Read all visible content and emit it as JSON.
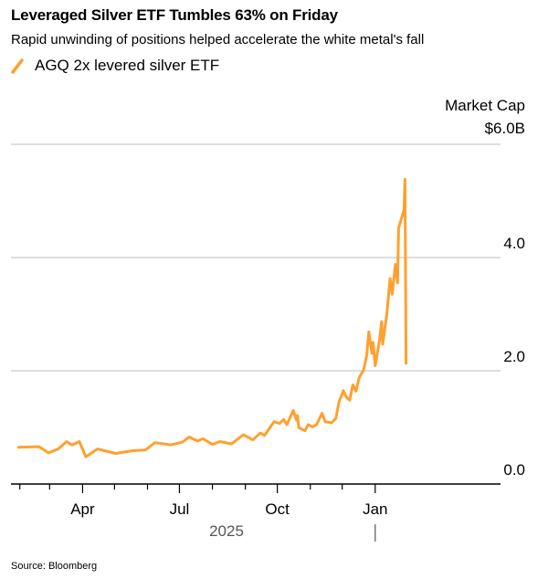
{
  "title": "Leveraged Silver ETF Tumbles 63% on Friday",
  "subtitle": "Rapid unwinding of positions helped accelerate the white metal's fall",
  "source": "Source: Bloomberg",
  "colors": {
    "series": "#FFA030",
    "grid": "#D4D4D4",
    "axis": "#000000",
    "year": "#555555"
  },
  "legend_icon": "slash-line-icon",
  "chart_data": {
    "type": "line",
    "title": "Leveraged Silver ETF Tumbles 63% on Friday",
    "ylabel": "Market Cap",
    "ylabel_unit_top": "$6.0B",
    "ylim": [
      0,
      6
    ],
    "y_ticks": [
      {
        "value": 0,
        "label": "0.0"
      },
      {
        "value": 2,
        "label": "2.0"
      },
      {
        "value": 4,
        "label": "4.0"
      }
    ],
    "y_axis_side": "right",
    "grid": true,
    "legend_placement": "top-left",
    "xlim": [
      "2025-01-24",
      "2026-02-23"
    ],
    "x_ticks": [
      {
        "date": "2025-02-01",
        "label": ""
      },
      {
        "date": "2025-03-01",
        "label": ""
      },
      {
        "date": "2025-04-01",
        "label": "Apr"
      },
      {
        "date": "2025-05-01",
        "label": ""
      },
      {
        "date": "2025-06-01",
        "label": ""
      },
      {
        "date": "2025-07-01",
        "label": "Jul"
      },
      {
        "date": "2025-08-01",
        "label": ""
      },
      {
        "date": "2025-09-01",
        "label": ""
      },
      {
        "date": "2025-10-01",
        "label": "Oct"
      },
      {
        "date": "2025-11-01",
        "label": ""
      },
      {
        "date": "2025-12-01",
        "label": ""
      },
      {
        "date": "2026-01-01",
        "label": "Jan"
      }
    ],
    "year_label": "2025",
    "series": [
      {
        "name": "AGQ 2x levered silver ETF",
        "x": [
          "2025-01-31",
          "2025-02-19",
          "2025-02-28",
          "2025-03-09",
          "2025-03-17",
          "2025-03-22",
          "2025-03-29",
          "2025-04-04",
          "2025-04-15",
          "2025-05-02",
          "2025-05-19",
          "2025-05-30",
          "2025-06-08",
          "2025-06-23",
          "2025-07-04",
          "2025-07-10",
          "2025-07-18",
          "2025-07-23",
          "2025-08-01",
          "2025-08-08",
          "2025-08-19",
          "2025-08-30",
          "2025-09-08",
          "2025-09-15",
          "2025-09-19",
          "2025-09-28",
          "2025-10-03",
          "2025-10-07",
          "2025-10-10",
          "2025-10-16",
          "2025-10-19",
          "2025-10-20",
          "2025-10-21",
          "2025-10-27",
          "2025-10-30",
          "2025-11-03",
          "2025-11-07",
          "2025-11-12",
          "2025-11-15",
          "2025-11-21",
          "2025-11-25",
          "2025-11-28",
          "2025-12-02",
          "2025-12-05",
          "2025-12-08",
          "2025-12-11",
          "2025-12-14",
          "2025-12-17",
          "2025-12-21",
          "2025-12-24",
          "2025-12-26",
          "2025-12-29",
          "2025-12-30",
          "2026-01-01",
          "2026-01-05",
          "2026-01-07",
          "2026-01-08",
          "2026-01-12",
          "2026-01-15",
          "2026-01-17",
          "2026-01-20",
          "2026-01-22",
          "2026-01-23",
          "2026-01-28",
          "2026-01-29",
          "2026-01-30"
        ],
        "y": [
          0.65,
          0.66,
          0.55,
          0.62,
          0.75,
          0.69,
          0.75,
          0.48,
          0.62,
          0.54,
          0.59,
          0.6,
          0.73,
          0.69,
          0.74,
          0.83,
          0.76,
          0.8,
          0.7,
          0.75,
          0.71,
          0.87,
          0.78,
          0.9,
          0.86,
          1.1,
          1.07,
          1.14,
          1.05,
          1.3,
          1.13,
          1.21,
          1.0,
          0.94,
          1.05,
          1.01,
          1.05,
          1.25,
          1.1,
          1.08,
          1.16,
          1.45,
          1.65,
          1.53,
          1.48,
          1.75,
          1.64,
          1.88,
          2.01,
          2.27,
          2.69,
          2.31,
          2.5,
          2.09,
          2.53,
          2.87,
          2.47,
          3.01,
          3.63,
          3.35,
          3.88,
          3.55,
          4.52,
          4.84,
          5.38,
          2.13
        ]
      }
    ]
  }
}
